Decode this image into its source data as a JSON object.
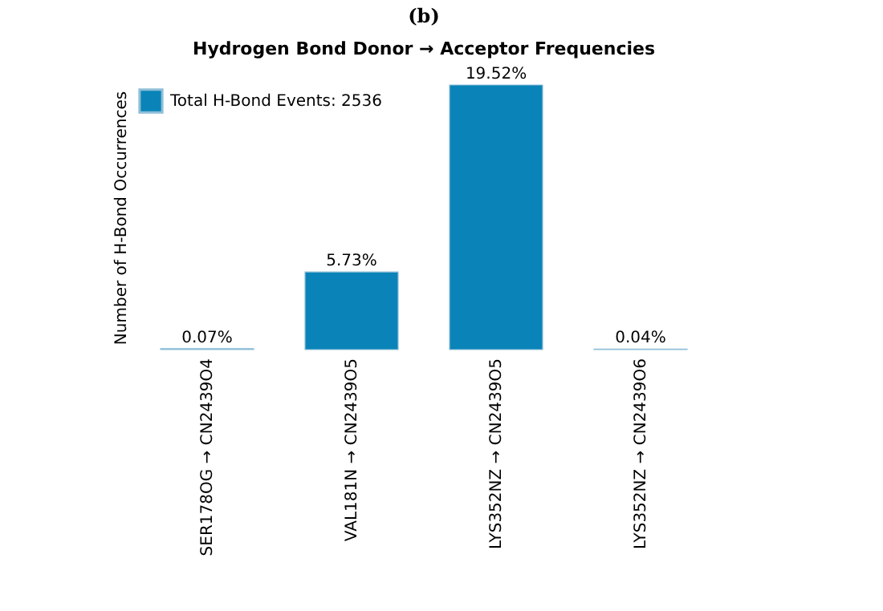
{
  "chart_data": {
    "type": "bar",
    "title": "(b)",
    "subtitle": "Hydrogen Bond Donor → Acceptor Frequencies",
    "ylabel": "Number of H-Bond Occurrences",
    "categories": [
      "SER178OG → CN2439O4",
      "VAL181N → CN2439O5",
      "LYS352NZ → CN2439O5",
      "LYS352NZ → CN2439O6"
    ],
    "series": [
      {
        "name": "Total H-Bond Events: 2536",
        "color": "#0a84b8",
        "values": [
          0.07,
          5.73,
          19.52,
          0.04
        ],
        "value_labels": [
          "0.07%",
          "5.73%",
          "19.52%",
          "0.04%"
        ]
      }
    ],
    "legend": "top left",
    "grid": false,
    "tick_labels": "x"
  }
}
